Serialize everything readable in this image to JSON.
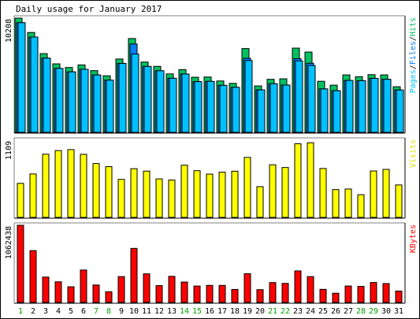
{
  "chart_data": {
    "type": "bar",
    "title": "Daily usage for January 2017",
    "days": [
      "1",
      "2",
      "3",
      "4",
      "5",
      "6",
      "7",
      "8",
      "9",
      "10",
      "11",
      "12",
      "13",
      "14",
      "15",
      "16",
      "17",
      "18",
      "19",
      "20",
      "21",
      "22",
      "23",
      "24",
      "25",
      "26",
      "27",
      "28",
      "29",
      "30",
      "31"
    ],
    "weekend_days": [
      "1",
      "7",
      "8",
      "14",
      "15",
      "21",
      "22",
      "28",
      "29"
    ],
    "panels": [
      {
        "id": "hits",
        "ymax_label": "10208",
        "ymax": 10208,
        "right_label": [
          "Pages",
          "/",
          "Files",
          "/",
          "Hits"
        ],
        "right_label_colors": [
          "#00c0ff",
          "#000000",
          "#0080ff",
          "#000000",
          "#00c060"
        ],
        "series": [
          {
            "name": "Hits",
            "color": "#00c060",
            "values": [
              10208,
              8925,
              7036,
              6121,
              5796,
              6025,
              5516,
              5056,
              6554,
              8384,
              6281,
              5897,
              5224,
              5604,
              4924,
              4945,
              4592,
              4376,
              7490,
              4147,
              4739,
              4784,
              7528,
              7176,
              4563,
              4216,
              5132,
              4970,
              5156,
              5134,
              4077
            ]
          },
          {
            "name": "Files",
            "color": "#0080ff",
            "values": [
              9800,
              8519,
              6630,
              5715,
              5404,
              5633,
              5124,
              4664,
              6162,
              7895,
              5889,
              5505,
              4832,
              5212,
              4532,
              4553,
              4200,
              4024,
              6616,
              3795,
              4346,
              4226,
              6586,
              6173,
              3882,
              3722,
              4640,
              4616,
              4825,
              4740,
              3784
            ]
          },
          {
            "name": "Pages",
            "color": "#00c0ff",
            "values": [
              9800,
              8519,
              6630,
              5715,
              5404,
              5633,
              5124,
              4664,
              6162,
              6995,
              5889,
              5505,
              4832,
              5212,
              4532,
              4553,
              4200,
              4024,
              6416,
              3795,
              4346,
              4226,
              6386,
              5973,
              3882,
              3722,
              4640,
              4616,
              4825,
              4740,
              3784
            ]
          }
        ]
      },
      {
        "id": "visits",
        "ymax_label": "1109",
        "ymax": 1109,
        "right_label": [
          "Visits"
        ],
        "right_label_colors": [
          "#e0e000"
        ],
        "series": [
          {
            "name": "Visits",
            "color": "#ffff00",
            "values": [
              489,
              624,
              908,
              960,
              974,
              906,
              774,
              729,
              546,
              700,
              665,
              553,
              537,
              750,
              671,
              622,
              650,
              664,
              862,
              442,
              756,
              717,
              1058,
              1072,
              703,
              400,
              408,
              326,
              667,
              690,
              466
            ]
          }
        ]
      },
      {
        "id": "kbytes",
        "ymax_label": "1062438",
        "ymax": 1062438,
        "right_label": [
          "KBytes"
        ],
        "right_label_colors": [
          "#ff0000"
        ],
        "series": [
          {
            "name": "KBytes",
            "color": "#ff0000",
            "values": [
              1062438,
              713898,
              349460,
              284324,
              215800,
              446500,
              240400,
              148120,
              356220,
              744330,
              394130,
              232120,
              359760,
              281410,
              225940,
              235310,
              234910,
              179270,
              395510,
              176670,
              274370,
              262740,
              434410,
              356010,
              180760,
              127540,
              226520,
              221710,
              275030,
              260560,
              157250
            ]
          }
        ]
      }
    ]
  }
}
